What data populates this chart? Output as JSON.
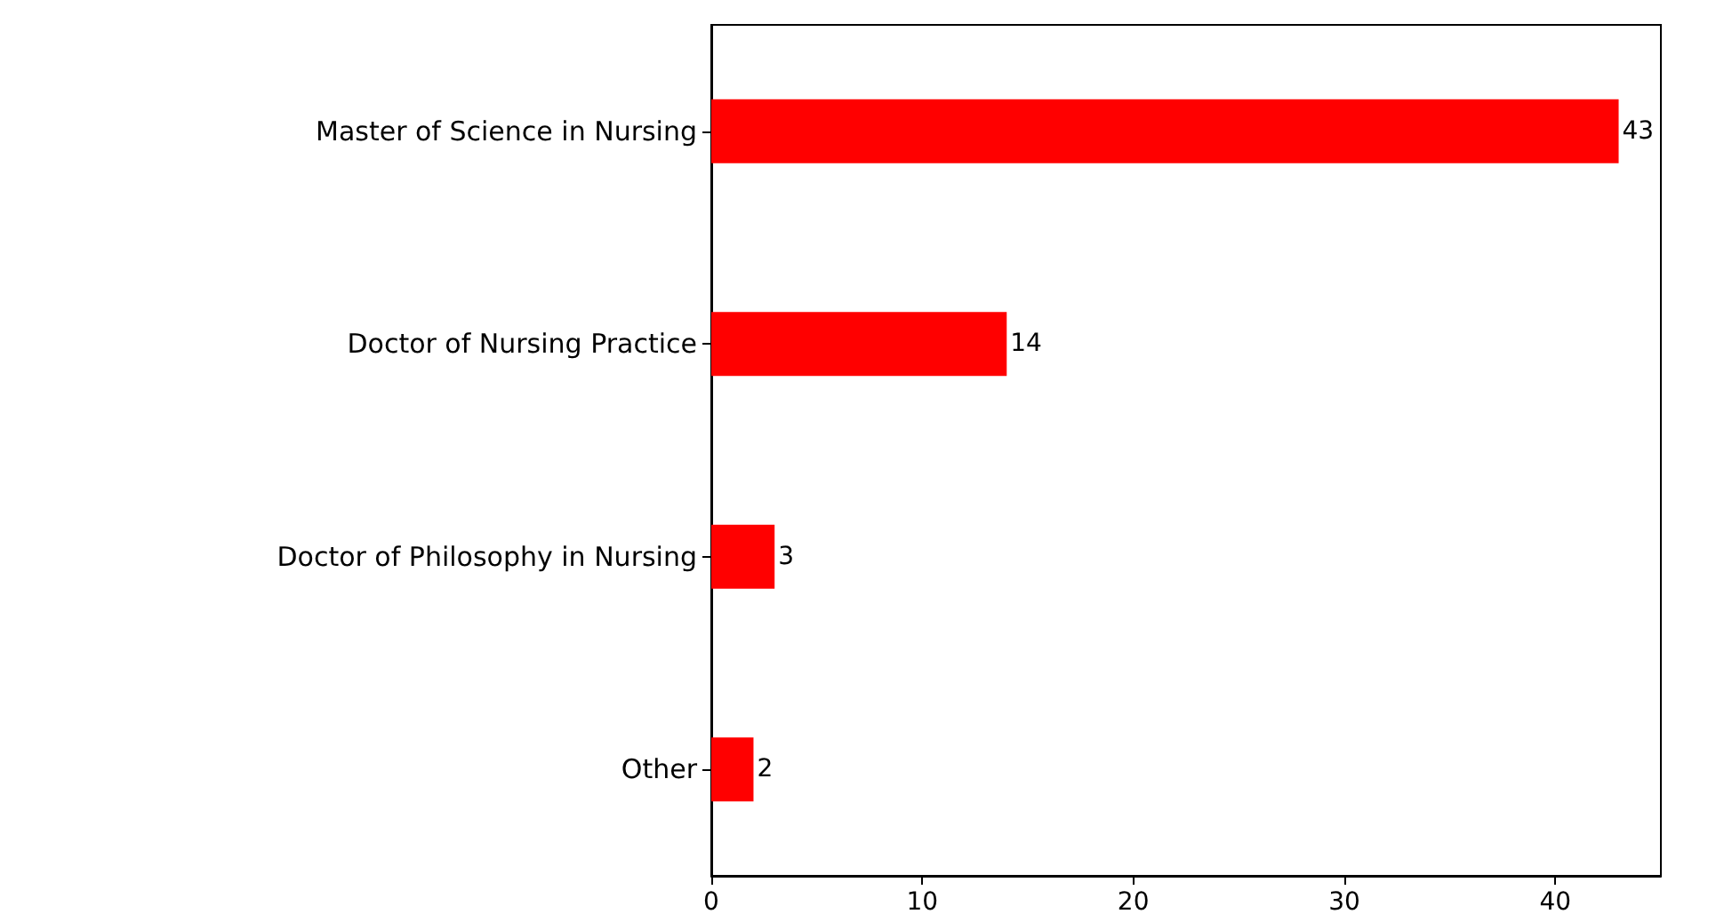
{
  "chart_data": {
    "type": "bar",
    "orientation": "horizontal",
    "categories": [
      "Master of Science in Nursing",
      "Doctor of Nursing Practice",
      "Doctor of Philosophy in Nursing",
      "Other"
    ],
    "values": [
      43,
      14,
      3,
      2
    ],
    "color": "#ff0000",
    "data_labels": true,
    "grid": false,
    "xlim": [
      0,
      45
    ],
    "xticks": [
      0,
      10,
      20,
      30,
      40
    ]
  }
}
